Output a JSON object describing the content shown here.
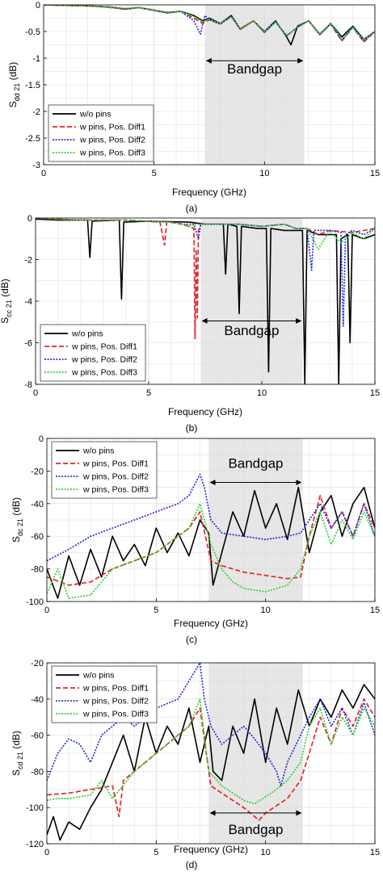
{
  "style": {
    "bandgap_fill": "#e6e6e6",
    "grid_color": "#dcdcdc",
    "series_colors": [
      "#000000",
      "#e3262d",
      "#2432d4",
      "#35d135"
    ]
  },
  "chart_data": [
    {
      "type": "line",
      "panel_label": "(a)",
      "ylabel_main": "S",
      "ylabel_sub": "dd 21",
      "ylabel_unit": " (dB)",
      "xlabel": "Frequency (GHz)",
      "xlim": [
        0,
        15
      ],
      "ylim": [
        -3,
        0
      ],
      "xticks": [
        0,
        5,
        10,
        15
      ],
      "yticks": [
        0,
        -0.5,
        -1,
        -1.5,
        -2,
        -2.5,
        -3
      ],
      "legend_position": "bottom-left",
      "bandgap": {
        "label": "Bandgap",
        "x_start": 7.3,
        "x_end": 11.8,
        "label_y": -1.2,
        "arrow_y": -1.05
      },
      "series": [
        {
          "name": "w/o pins",
          "style": "solid",
          "x": [
            0,
            1,
            2,
            3,
            3.7,
            4.3,
            5,
            5.6,
            6.2,
            6.8,
            7.2,
            7.5,
            8,
            8.5,
            8.9,
            9.5,
            10,
            10.5,
            11,
            11.2,
            11.5,
            12,
            12.5,
            13,
            13.5,
            14,
            14.5,
            15
          ],
          "y": [
            0,
            -0.01,
            -0.02,
            -0.04,
            -0.08,
            -0.05,
            -0.1,
            -0.15,
            -0.12,
            -0.2,
            -0.3,
            -0.25,
            -0.35,
            -0.2,
            -0.45,
            -0.3,
            -0.5,
            -0.3,
            -0.6,
            -0.75,
            -0.4,
            -0.3,
            -0.55,
            -0.35,
            -0.6,
            -0.4,
            -0.65,
            -0.5
          ]
        },
        {
          "name": "w pins, Pos. Diff1",
          "style": "dashed",
          "x": [
            0,
            1,
            2,
            3,
            3.7,
            4.3,
            5,
            5.6,
            6.2,
            6.8,
            7.2,
            7.5,
            8,
            8.5,
            8.9,
            9.5,
            10,
            10.5,
            11,
            11.5,
            12,
            12.5,
            13,
            13.5,
            14,
            14.5,
            15
          ],
          "y": [
            0,
            -0.01,
            -0.02,
            -0.04,
            -0.07,
            -0.05,
            -0.1,
            -0.14,
            -0.12,
            -0.25,
            -0.35,
            -0.28,
            -0.36,
            -0.22,
            -0.46,
            -0.3,
            -0.52,
            -0.32,
            -0.58,
            -0.42,
            -0.3,
            -0.56,
            -0.36,
            -0.68,
            -0.42,
            -0.7,
            -0.5
          ]
        },
        {
          "name": "w pins, Pos. Diff2",
          "style": "dotted",
          "x": [
            0,
            1,
            2,
            3,
            3.7,
            4.3,
            5,
            5.6,
            6.2,
            6.8,
            7.1,
            7.3,
            7.5,
            8,
            8.5,
            8.9,
            9.5,
            10,
            10.5,
            11,
            11.5,
            12,
            12.5,
            13,
            13.5,
            14,
            14.5,
            15
          ],
          "y": [
            0,
            -0.01,
            -0.02,
            -0.05,
            -0.08,
            -0.05,
            -0.11,
            -0.15,
            -0.12,
            -0.3,
            -0.55,
            -0.2,
            -0.28,
            -0.36,
            -0.22,
            -0.46,
            -0.3,
            -0.52,
            -0.32,
            -0.58,
            -0.42,
            -0.3,
            -0.56,
            -0.36,
            -0.66,
            -0.42,
            -0.68,
            -0.5
          ]
        },
        {
          "name": "w pins, Pos. Diff3",
          "style": "dotted",
          "x": [
            0,
            1,
            2,
            3,
            3.7,
            4.3,
            5,
            5.6,
            6.2,
            6.8,
            7.2,
            7.5,
            8,
            8.5,
            8.9,
            9.5,
            10,
            10.5,
            11,
            11.5,
            12,
            12.5,
            13,
            13.5,
            14,
            14.5,
            15
          ],
          "y": [
            0,
            -0.01,
            -0.02,
            -0.04,
            -0.07,
            -0.05,
            -0.1,
            -0.14,
            -0.12,
            -0.22,
            -0.32,
            -0.27,
            -0.35,
            -0.22,
            -0.45,
            -0.3,
            -0.5,
            -0.32,
            -0.57,
            -0.42,
            -0.3,
            -0.55,
            -0.35,
            -0.64,
            -0.42,
            -0.66,
            -0.5
          ]
        }
      ]
    },
    {
      "type": "line",
      "panel_label": "(b)",
      "ylabel_main": "S",
      "ylabel_sub": "cc 21",
      "ylabel_unit": " (dB)",
      "xlabel": "Frequency (GHz)",
      "xlim": [
        0,
        15
      ],
      "ylim": [
        -8,
        0
      ],
      "xticks": [
        0,
        5,
        10,
        15
      ],
      "yticks": [
        0,
        -2,
        -4,
        -6,
        -8
      ],
      "legend_position": "bottom-left",
      "bandgap": {
        "label": "Bandgap",
        "x_start": 7.3,
        "x_end": 11.8,
        "label_y": -5.4,
        "arrow_y": -4.95
      },
      "series": [
        {
          "name": "w/o pins",
          "style": "solid",
          "x": [
            0,
            1,
            2.3,
            2.4,
            2.5,
            3.7,
            3.8,
            3.9,
            5,
            6.8,
            7.5,
            8.3,
            8.4,
            8.5,
            8.9,
            9,
            9.1,
            9.8,
            10.2,
            10.3,
            10.4,
            11,
            11.8,
            11.9,
            12,
            12.5,
            13.3,
            13.4,
            13.5,
            13.8,
            13.9,
            14,
            14.5,
            15
          ],
          "y": [
            -0.05,
            -0.1,
            -0.1,
            -1.9,
            -0.15,
            -0.1,
            -3.9,
            -0.2,
            -0.15,
            -0.2,
            -0.3,
            -0.3,
            -2.7,
            -0.3,
            -0.4,
            -4.6,
            -0.4,
            -0.5,
            -0.5,
            -7.4,
            -0.5,
            -0.6,
            -0.6,
            -8,
            -0.6,
            -0.8,
            -0.8,
            -8,
            -1,
            -0.8,
            -6,
            -0.8,
            -1,
            -0.8
          ]
        },
        {
          "name": "w pins, Pos. Diff1",
          "style": "dashed",
          "x": [
            0,
            2,
            4,
            5.5,
            5.7,
            5.8,
            5.9,
            6.5,
            7,
            7.05,
            7.1,
            7.15,
            7.2,
            7.3,
            8,
            9,
            10,
            11,
            11.5,
            12,
            12.5,
            13,
            14,
            15
          ],
          "y": [
            0,
            -0.1,
            -0.1,
            -0.2,
            -1.3,
            -0.2,
            -0.2,
            -0.3,
            -0.5,
            -5.8,
            -1.5,
            -4.8,
            -0.6,
            -0.3,
            -0.3,
            -0.3,
            -0.4,
            -0.3,
            -0.5,
            -0.5,
            -0.8,
            -0.6,
            -0.7,
            -0.5
          ]
        },
        {
          "name": "w pins, Pos. Diff2",
          "style": "dotted",
          "x": [
            0,
            2,
            4,
            5,
            6,
            6.5,
            7,
            7.2,
            7.3,
            8,
            9,
            10,
            11,
            11.5,
            12,
            12.2,
            12.3,
            13,
            13.5,
            13.6,
            13.7,
            14,
            14.5,
            15
          ],
          "y": [
            0,
            -0.1,
            -0.1,
            -0.15,
            -0.2,
            -0.3,
            -0.3,
            -1,
            -0.3,
            -0.3,
            -0.3,
            -0.4,
            -0.3,
            -0.5,
            -0.5,
            -2.5,
            -0.6,
            -0.6,
            -0.7,
            -5.2,
            -0.8,
            -0.6,
            -0.8,
            -0.5
          ]
        },
        {
          "name": "w pins, Pos. Diff3",
          "style": "dotted",
          "x": [
            0,
            2,
            4,
            5,
            6,
            6.8,
            7,
            7.5,
            8,
            9,
            10,
            11,
            11.5,
            12,
            12.5,
            13,
            13.5,
            14,
            14.5,
            15
          ],
          "y": [
            0,
            -0.1,
            -0.1,
            -0.15,
            -0.2,
            -0.4,
            -0.3,
            -0.3,
            -0.3,
            -0.3,
            -0.4,
            -0.3,
            -0.5,
            -0.5,
            -1.5,
            -0.6,
            -1.2,
            -0.7,
            -1.0,
            -0.5
          ]
        }
      ]
    },
    {
      "type": "line",
      "panel_label": "(c)",
      "ylabel_main": "S",
      "ylabel_sub": "dc 21",
      "ylabel_unit": " (dB)",
      "xlabel": "Frequency (GHz)",
      "xlim": [
        0,
        15
      ],
      "ylim": [
        -100,
        0
      ],
      "xticks": [
        0,
        5,
        10,
        15
      ],
      "yticks": [
        0,
        -20,
        -40,
        -60,
        -80,
        -100
      ],
      "legend_position": "top-left",
      "bandgap": {
        "label": "Bandgap",
        "x_start": 7.4,
        "x_end": 11.7,
        "label_y": -15,
        "arrow_y": -27
      },
      "series": [
        {
          "name": "w/o pins",
          "style": "solid",
          "x": [
            0,
            0.5,
            1,
            1.5,
            2,
            2.5,
            3,
            3.5,
            4,
            4.5,
            5,
            5.5,
            6,
            6.5,
            7,
            7.4,
            7.6,
            8,
            8.5,
            9,
            9.5,
            10,
            10.5,
            11,
            11.5,
            12,
            12.5,
            13,
            13.5,
            14,
            14.5,
            15
          ],
          "y": [
            -80,
            -98,
            -72,
            -90,
            -68,
            -85,
            -60,
            -75,
            -65,
            -78,
            -55,
            -70,
            -58,
            -72,
            -50,
            -58,
            -90,
            -70,
            -45,
            -60,
            -32,
            -55,
            -40,
            -62,
            -30,
            -70,
            -45,
            -35,
            -60,
            -40,
            -30,
            -55
          ]
        },
        {
          "name": "w pins, Pos. Diff1",
          "style": "dashed",
          "x": [
            0,
            1,
            2,
            3,
            4,
            5,
            6,
            6.5,
            7,
            7.5,
            8,
            9,
            10,
            11,
            11.6,
            12,
            12.5,
            13,
            13.5,
            14,
            14.5,
            15
          ],
          "y": [
            -85,
            -90,
            -88,
            -80,
            -75,
            -70,
            -60,
            -55,
            -45,
            -75,
            -78,
            -82,
            -84,
            -86,
            -85,
            -60,
            -35,
            -55,
            -45,
            -60,
            -40,
            -55
          ]
        },
        {
          "name": "w pins, Pos. Diff2",
          "style": "dotted",
          "x": [
            0,
            1,
            2,
            3,
            4,
            5,
            6,
            6.5,
            7,
            7.2,
            7.5,
            8,
            9,
            10,
            11,
            11.6,
            12,
            12.5,
            13,
            13.5,
            14,
            14.5,
            15
          ],
          "y": [
            -75,
            -68,
            -60,
            -55,
            -50,
            -45,
            -40,
            -35,
            -22,
            -30,
            -50,
            -58,
            -60,
            -62,
            -60,
            -58,
            -50,
            -40,
            -55,
            -45,
            -60,
            -40,
            -60
          ]
        },
        {
          "name": "w pins, Pos. Diff3",
          "style": "dotted",
          "x": [
            0,
            0.5,
            1,
            2,
            3,
            4,
            5,
            6,
            6.5,
            7,
            7.5,
            8,
            8.5,
            9,
            10,
            11,
            11.6,
            12,
            12.5,
            13,
            13.5,
            14,
            14.5,
            15
          ],
          "y": [
            -95,
            -80,
            -98,
            -96,
            -80,
            -75,
            -70,
            -60,
            -55,
            -40,
            -65,
            -80,
            -88,
            -92,
            -94,
            -90,
            -80,
            -60,
            -45,
            -65,
            -50,
            -62,
            -45,
            -60
          ]
        }
      ]
    },
    {
      "type": "line",
      "panel_label": "(d)",
      "ylabel_main": "S",
      "ylabel_sub": "cd 21",
      "ylabel_unit": " (dB)",
      "xlabel": "Frequency (GHz)",
      "xlim": [
        0,
        15
      ],
      "ylim": [
        -120,
        -20
      ],
      "xticks": [
        0,
        5,
        10,
        15
      ],
      "yticks": [
        -20,
        -40,
        -60,
        -80,
        -100,
        -120
      ],
      "legend_position": "top-left",
      "bandgap": {
        "label": "Bandgap",
        "x_start": 7.4,
        "x_end": 11.7,
        "label_y": -112,
        "arrow_y": -103
      },
      "series": [
        {
          "name": "w/o pins",
          "style": "solid",
          "x": [
            0,
            0.3,
            0.6,
            1,
            1.5,
            2,
            2.5,
            3,
            3.5,
            4,
            4.5,
            5,
            5.5,
            6,
            6.5,
            7,
            7.4,
            7.6,
            8,
            8.5,
            9,
            9.5,
            10,
            10.5,
            11,
            11.5,
            12,
            12.5,
            13,
            13.5,
            14,
            14.5,
            15
          ],
          "y": [
            -115,
            -105,
            -118,
            -108,
            -112,
            -100,
            -90,
            -75,
            -60,
            -80,
            -50,
            -70,
            -55,
            -65,
            -45,
            -75,
            -55,
            -80,
            -85,
            -55,
            -70,
            -40,
            -75,
            -45,
            -65,
            -35,
            -55,
            -40,
            -50,
            -35,
            -45,
            -32,
            -40
          ]
        },
        {
          "name": "w pins, Pos. Diff1",
          "style": "dashed",
          "x": [
            0,
            1,
            2,
            3,
            3.3,
            3.5,
            4,
            5,
            6,
            6.5,
            7,
            7.5,
            8,
            9,
            9.7,
            10,
            11,
            11.6,
            12,
            12.5,
            13,
            13.5,
            14,
            14.5,
            15
          ],
          "y": [
            -93,
            -92,
            -90,
            -88,
            -105,
            -85,
            -80,
            -70,
            -60,
            -55,
            -45,
            -88,
            -92,
            -100,
            -107,
            -103,
            -95,
            -85,
            -70,
            -50,
            -65,
            -45,
            -55,
            -40,
            -50
          ]
        },
        {
          "name": "w pins, Pos. Diff2",
          "style": "dotted",
          "x": [
            0,
            0.5,
            1,
            1.5,
            2,
            2.5,
            3,
            3.5,
            4,
            5,
            6,
            6.5,
            7,
            7.2,
            7.5,
            8,
            8.5,
            9,
            9.5,
            10,
            10.5,
            10.7,
            11,
            11.6,
            12,
            12.5,
            13,
            13.5,
            14,
            14.5,
            15
          ],
          "y": [
            -85,
            -70,
            -62,
            -65,
            -75,
            -60,
            -55,
            -50,
            -55,
            -45,
            -40,
            -30,
            -20,
            -40,
            -55,
            -65,
            -60,
            -55,
            -62,
            -70,
            -80,
            -88,
            -75,
            -60,
            -50,
            -40,
            -55,
            -45,
            -60,
            -42,
            -60
          ]
        },
        {
          "name": "w pins, Pos. Diff3",
          "style": "dotted",
          "x": [
            0,
            0.5,
            1,
            2,
            2.5,
            3,
            4,
            5,
            6,
            6.5,
            7,
            7.4,
            8,
            8.5,
            9,
            9.5,
            10,
            10.5,
            11,
            11.6,
            12,
            12.5,
            13,
            13.5,
            14,
            14.5,
            15
          ],
          "y": [
            -96,
            -95,
            -95,
            -93,
            -85,
            -95,
            -80,
            -70,
            -60,
            -55,
            -40,
            -80,
            -88,
            -92,
            -96,
            -98,
            -94,
            -90,
            -85,
            -75,
            -55,
            -45,
            -65,
            -50,
            -60,
            -45,
            -55
          ]
        }
      ]
    }
  ]
}
